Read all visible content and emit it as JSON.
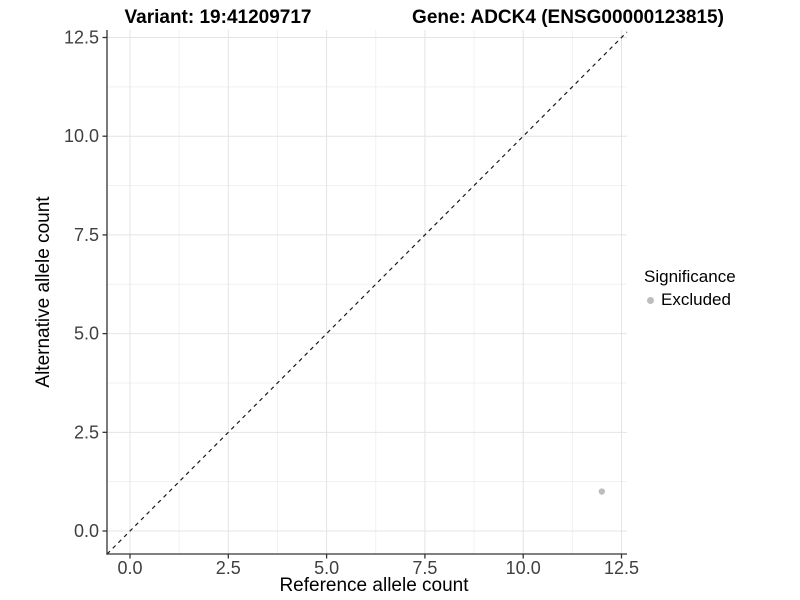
{
  "chart_data": {
    "type": "scatter",
    "titles": {
      "left": "Variant: 19:41209717",
      "right": "Gene: ADCK4 (ENSG00000123815)"
    },
    "xlabel": "Reference allele count",
    "ylabel": "Alternative allele count",
    "xlim": [
      -0.585,
      12.64
    ],
    "ylim": [
      -0.582,
      12.69
    ],
    "xticks": [
      0.0,
      2.5,
      5.0,
      7.5,
      10.0,
      12.5
    ],
    "yticks": [
      0.0,
      2.5,
      5.0,
      7.5,
      10.0,
      12.5
    ],
    "minor_ticks_x": [
      1.25,
      3.75,
      6.25,
      8.75,
      11.25
    ],
    "minor_ticks_y": [
      1.25,
      3.75,
      6.25,
      8.75,
      11.25
    ],
    "tick_decimals": 1,
    "grid": true,
    "identity_line": {
      "slope": 1,
      "intercept": 0,
      "style": "dashed",
      "color": "#1a1a1a"
    },
    "series": [
      {
        "name": "Excluded",
        "color": "#bdbdbd",
        "points": [
          {
            "x": 12,
            "y": 1
          }
        ]
      }
    ],
    "legend": {
      "title": "Significance",
      "position": "right",
      "items": [
        {
          "label": "Excluded",
          "color": "#bdbdbd"
        }
      ]
    },
    "colors": {
      "background": "#ffffff",
      "grid_major": "#e4e4e4",
      "grid_minor": "#f1f1f1",
      "axis_line": "#343434",
      "tick_mark": "#343434",
      "tick_label": "#404040"
    }
  }
}
